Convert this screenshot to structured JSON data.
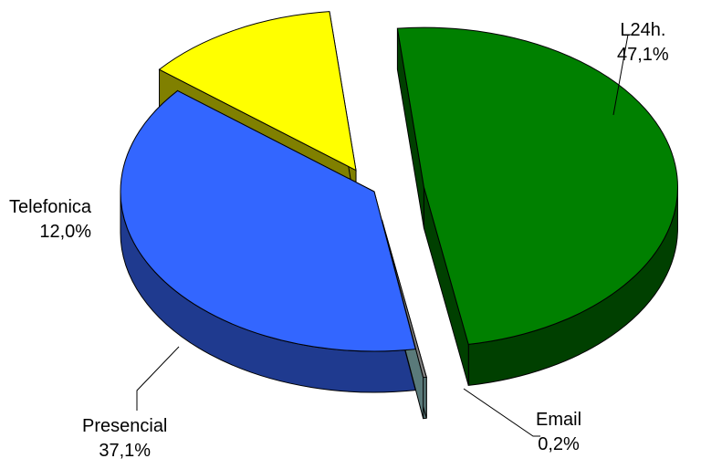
{
  "chart_data": {
    "type": "pie",
    "style": "3d-exploded",
    "slices": [
      {
        "label": "L24h.",
        "value": 47.1,
        "value_text": "47,1%",
        "color": "#008000",
        "side_color": "#004000"
      },
      {
        "label": "Email",
        "value": 0.2,
        "value_text": "0,2%",
        "color": "#808080",
        "side_color": "#5a7a7a"
      },
      {
        "label": "Presencial",
        "value": 37.1,
        "value_text": "37,1%",
        "color": "#3366ff",
        "side_color": "#1f3a8f"
      },
      {
        "label": "Telefonica",
        "value": 12.0,
        "value_text": "12,0%",
        "color": "#ffff00",
        "side_color": "#808000"
      }
    ],
    "legend": "none",
    "data_labels": "outside-with-leader-lines"
  }
}
